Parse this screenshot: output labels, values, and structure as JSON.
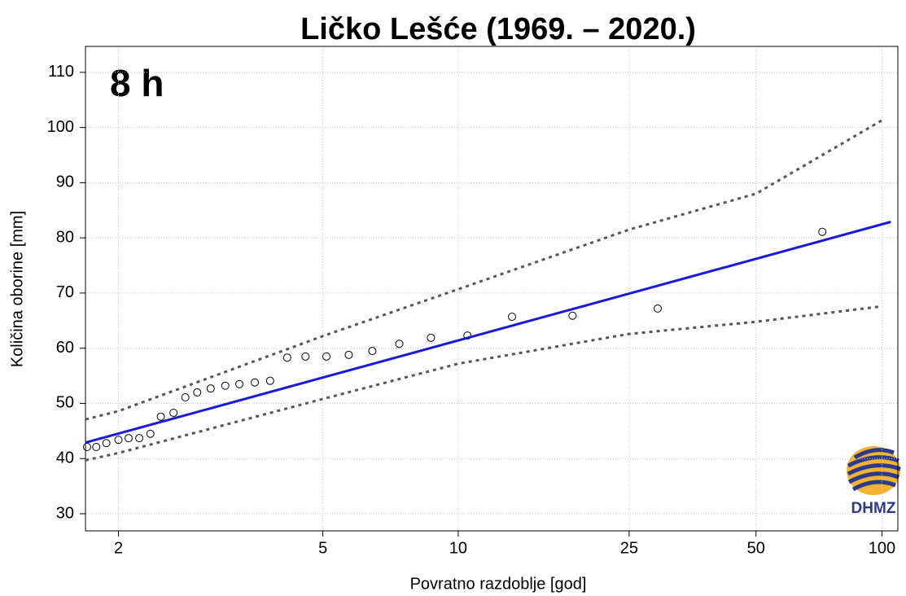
{
  "chart_data": {
    "type": "scatter",
    "title": "Ličko Lešće (1969. – 2020.)",
    "annotation": "8 h",
    "logo_text": "DHMZ",
    "x_label": "Povratno razdoblje [god]",
    "y_label": "Količina oborine [mm]",
    "xscale": "gumbel",
    "xlim": [
      1.77,
      109.2
    ],
    "xticks": [
      2,
      5,
      10,
      25,
      50,
      100
    ],
    "ylim": [
      26.9,
      114.7
    ],
    "yticks": [
      30,
      40,
      50,
      60,
      70,
      80,
      90,
      100,
      110
    ],
    "grid": true,
    "series": [
      {
        "style": "points",
        "color": "#000000",
        "x": [
          1.78,
          1.84,
          1.91,
          2.0,
          2.08,
          2.17,
          2.27,
          2.37,
          2.5,
          2.63,
          2.77,
          2.94,
          3.14,
          3.35,
          3.6,
          3.87,
          4.2,
          4.59,
          5.09,
          5.69,
          6.41,
          7.36,
          8.67,
          10.5,
          13.3,
          18.4,
          29.2,
          72
        ],
        "values": [
          42.1,
          42.1,
          42.8,
          43.4,
          43.7,
          43.7,
          44.5,
          47.6,
          48.3,
          51.1,
          52.0,
          52.7,
          53.2,
          53.5,
          53.8,
          54.1,
          58.3,
          58.5,
          58.5,
          58.8,
          59.5,
          60.8,
          61.9,
          62.3,
          65.7,
          65.9,
          67.2,
          81.1
        ]
      },
      {
        "style": "solid",
        "color": "#1a1adc",
        "x": [
          1.77,
          105
        ],
        "values": [
          42.9,
          82.9
        ]
      },
      {
        "style": "dotted",
        "color": "#555555",
        "x": [
          1.77,
          2,
          5,
          10,
          25,
          50,
          100
        ],
        "values": [
          47.1,
          48.6,
          62.2,
          70.7,
          81.5,
          88.0,
          101.3
        ]
      },
      {
        "style": "dotted",
        "color": "#555555",
        "x": [
          1.77,
          2,
          5,
          10,
          25,
          50,
          100
        ],
        "values": [
          39.7,
          41.0,
          50.8,
          57.2,
          62.6,
          64.8,
          67.6
        ]
      }
    ]
  }
}
